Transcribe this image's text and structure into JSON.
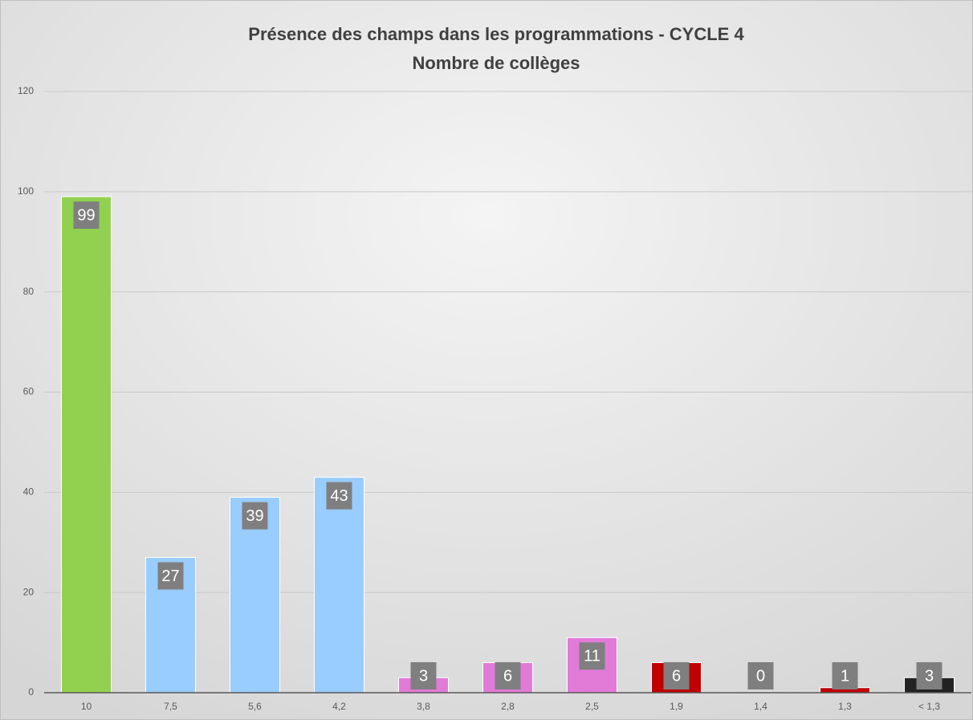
{
  "chart_data": {
    "type": "bar",
    "title": "Présence des champs dans les programmations - CYCLE 4",
    "subtitle": "Nombre de collèges",
    "categories": [
      "10",
      "7,5",
      "5,6",
      "4,2",
      "3,8",
      "2,8",
      "2,5",
      "1,9",
      "1,4",
      "1,3",
      "< 1,3"
    ],
    "values": [
      99,
      27,
      39,
      43,
      3,
      6,
      11,
      6,
      0,
      1,
      3
    ],
    "colors": [
      "#92d050",
      "#99ccff",
      "#99ccff",
      "#99ccff",
      "#e27ad8",
      "#e27ad8",
      "#e27ad8",
      "#c00000",
      "#c00000",
      "#c00000",
      "#222222"
    ],
    "ylim": [
      0,
      120
    ],
    "yticks": [
      0,
      20,
      40,
      60,
      80,
      100,
      120
    ],
    "grid": true
  }
}
